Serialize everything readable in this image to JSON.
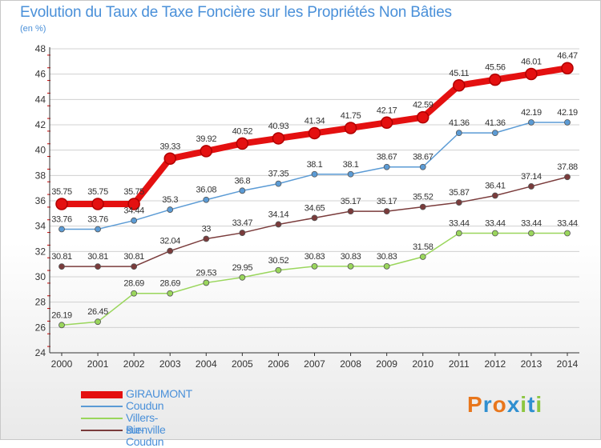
{
  "header": {
    "title": "Evolution du Taux de Taxe Foncière sur les Propriétés Non Bâties",
    "unit": "(en %)"
  },
  "brand": {
    "text": "Proxiti",
    "colors": [
      "#e8761c",
      "#2f8fd0",
      "#e8761c",
      "#2f8fd0",
      "#8cc63f",
      "#2f8fd0",
      "#8cc63f"
    ]
  },
  "colors": {
    "title": "#4a90d9",
    "axis": "#333333",
    "grid": "#d0d0d0",
    "tick_accent": "#cc0000"
  },
  "chart_data": {
    "type": "line",
    "title": "Evolution du Taux de Taxe Foncière sur les Propriétés Non Bâties",
    "ylabel": "(en %)",
    "xlabel": "",
    "ylim": [
      24,
      48
    ],
    "y_ticks": [
      24,
      26,
      28,
      30,
      32,
      34,
      36,
      38,
      40,
      42,
      44,
      46,
      48
    ],
    "grid": true,
    "legend_position": "bottom-left",
    "categories": [
      "2000",
      "2001",
      "2002",
      "2003",
      "2004",
      "2005",
      "2006",
      "2007",
      "2008",
      "2009",
      "2010",
      "2011",
      "2012",
      "2013",
      "2014"
    ],
    "series": [
      {
        "name": "GIRAUMONT",
        "color": "#e41010",
        "emphasis": true,
        "values": [
          35.75,
          35.75,
          35.75,
          39.33,
          39.92,
          40.52,
          40.93,
          41.34,
          41.75,
          42.17,
          42.59,
          45.11,
          45.56,
          46.01,
          46.47
        ],
        "labels": [
          "35.75",
          "35.75",
          "35.75",
          "39.33",
          "39.92",
          "40.52",
          "40.93",
          "41.34",
          "41.75",
          "42.17",
          "42.59",
          "45.11",
          "45.56",
          "46.01",
          "46.47"
        ]
      },
      {
        "name": "Coudun",
        "color": "#5b9bd5",
        "emphasis": false,
        "values": [
          33.76,
          33.76,
          34.44,
          35.3,
          36.08,
          36.8,
          37.35,
          38.1,
          38.1,
          38.67,
          38.67,
          41.36,
          41.36,
          42.19,
          42.19
        ],
        "labels": [
          "33.76",
          "33.76",
          "34.44",
          "35.3",
          "36.08",
          "36.8",
          "37.35",
          "38.1",
          "38.1",
          "38.67",
          "38.67",
          "41.36",
          "41.36",
          "42.19",
          "42.19"
        ]
      },
      {
        "name": "Villers-sur-Coudun",
        "color": "#9ad65c",
        "emphasis": false,
        "values": [
          26.19,
          26.45,
          28.69,
          28.69,
          29.53,
          29.95,
          30.52,
          30.83,
          30.83,
          30.83,
          31.58,
          33.44,
          33.44,
          33.44,
          33.44
        ],
        "labels": [
          "26.19",
          "26.45",
          "28.69",
          "28.69",
          "29.53",
          "29.95",
          "30.52",
          "30.83",
          "30.83",
          "30.83",
          "31.58",
          "33.44",
          "33.44",
          "33.44",
          "33.44"
        ]
      },
      {
        "name": "Bienville",
        "color": "#7a3b3b",
        "emphasis": false,
        "values": [
          30.81,
          30.81,
          30.81,
          32.04,
          33,
          33.47,
          34.14,
          34.65,
          35.17,
          35.17,
          35.52,
          35.87,
          36.41,
          37.14,
          37.88
        ],
        "labels": [
          "30.81",
          "30.81",
          "30.81",
          "32.04",
          "33",
          "33.47",
          "34.14",
          "34.65",
          "35.17",
          "35.17",
          "35.52",
          "35.87",
          "36.41",
          "37.14",
          "37.88"
        ]
      }
    ]
  }
}
